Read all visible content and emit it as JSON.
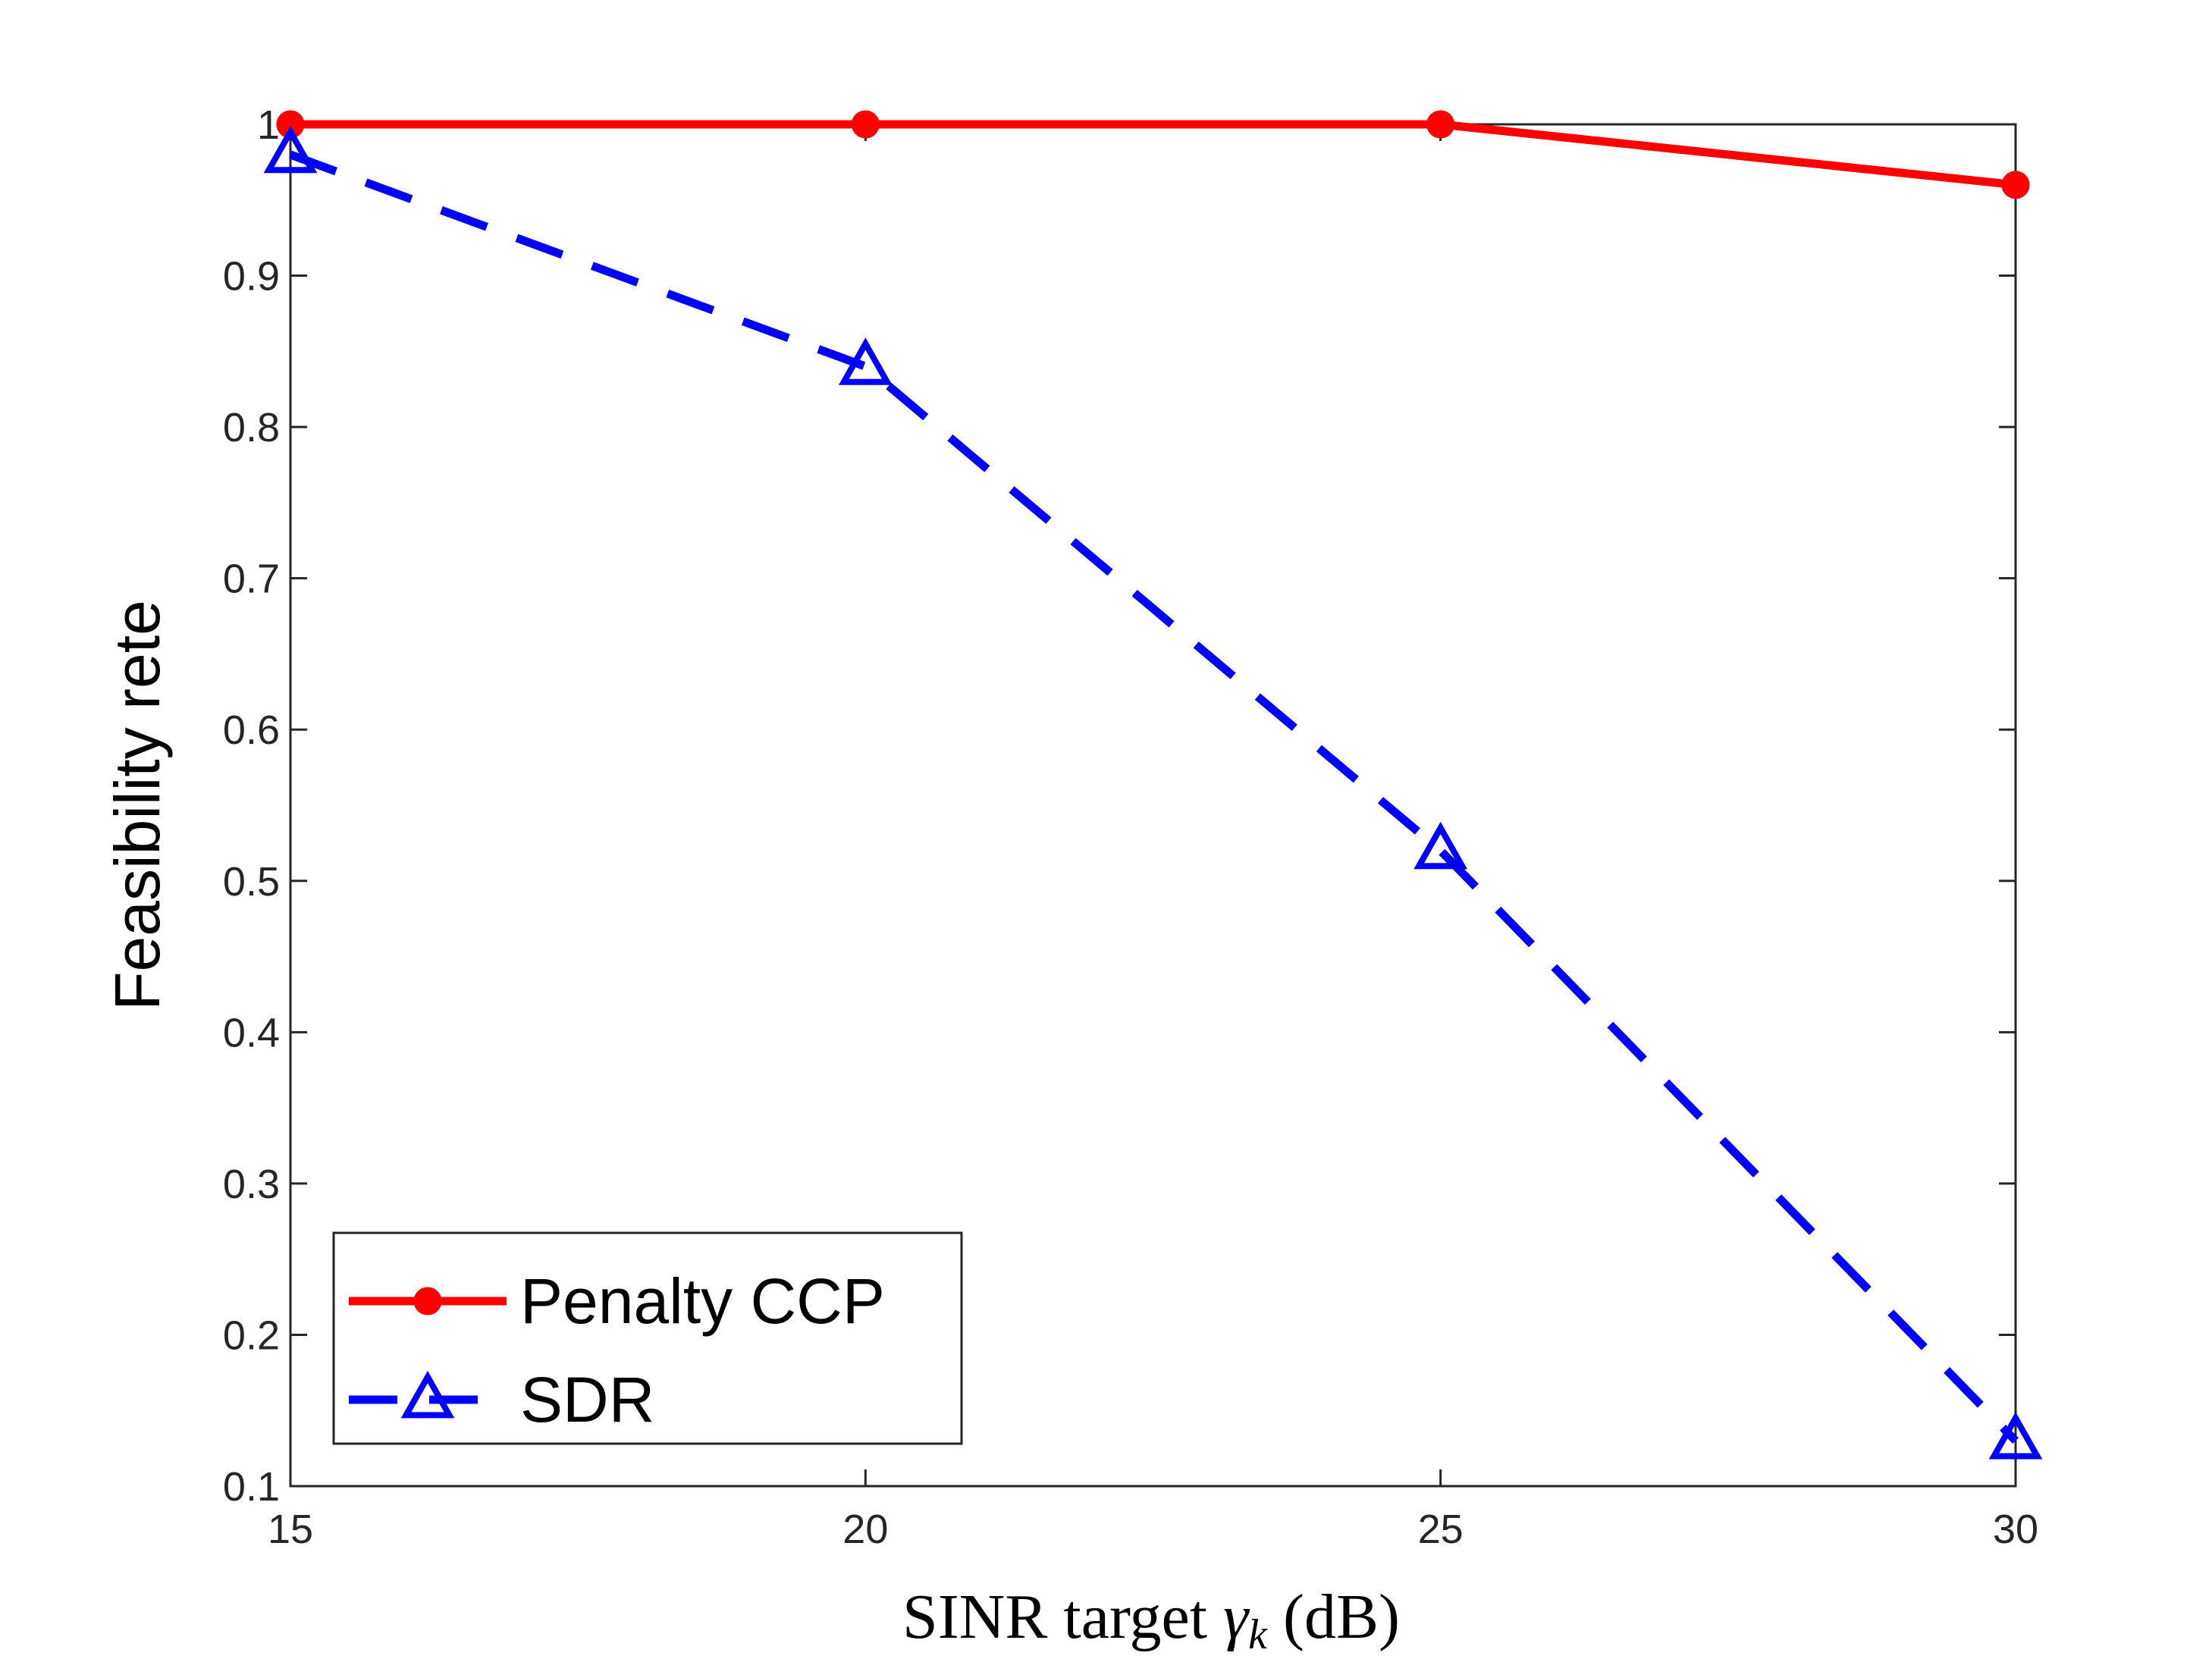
{
  "chart_data": {
    "type": "line",
    "x": [
      15,
      20,
      25,
      30
    ],
    "series": [
      {
        "name": "Penalty CCP",
        "values": [
          1.0,
          1.0,
          1.0,
          0.96
        ],
        "color": "#ff0000",
        "line_style": "solid",
        "marker": "filled-circle"
      },
      {
        "name": "SDR",
        "values": [
          0.98,
          0.84,
          0.52,
          0.13
        ],
        "color": "#0000ff",
        "line_style": "dashed",
        "marker": "open-triangle"
      }
    ],
    "xlabel": {
      "main": "SINR target ",
      "symbol": "γ",
      "subscript": "k",
      "unit": " (dB)"
    },
    "ylabel": "Feasibility rete",
    "xlim": [
      15,
      30
    ],
    "ylim": [
      0.1,
      1.0
    ],
    "xticks": [
      "15",
      "20",
      "25",
      "30"
    ],
    "yticks": [
      "0.1",
      "0.2",
      "0.3",
      "0.4",
      "0.5",
      "0.6",
      "0.7",
      "0.8",
      "0.9",
      "1"
    ],
    "grid": false,
    "legend_position": "bottom-left"
  }
}
